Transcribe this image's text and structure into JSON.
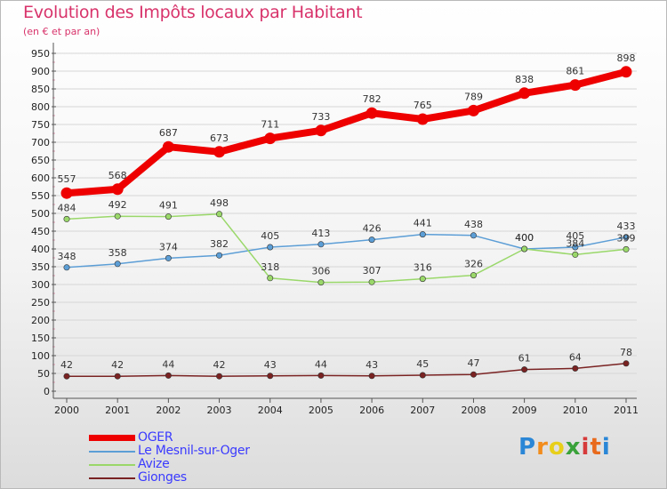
{
  "header": {
    "title": "Evolution des Impôts locaux par Habitant",
    "subtitle": "(en € et par an)"
  },
  "chart_data": {
    "type": "line",
    "title": "Evolution des Impôts locaux par Habitant",
    "subtitle": "(en € et par an)",
    "xlabel": "",
    "ylabel": "",
    "categories": [
      "2000",
      "2001",
      "2002",
      "2003",
      "2004",
      "2005",
      "2006",
      "2007",
      "2008",
      "2009",
      "2010",
      "2011"
    ],
    "ylim": [
      0,
      950
    ],
    "yticks": [
      0,
      50,
      100,
      150,
      200,
      250,
      300,
      350,
      400,
      450,
      500,
      550,
      600,
      650,
      700,
      750,
      800,
      850,
      900,
      950
    ],
    "grid": true,
    "legend_position": "bottom-left",
    "series": [
      {
        "name": "OGER",
        "color": "#ee0000",
        "values": [
          557,
          568,
          687,
          673,
          711,
          733,
          782,
          765,
          789,
          838,
          861,
          898
        ]
      },
      {
        "name": "Le Mesnil-sur-Oger",
        "color": "#5c9ed6",
        "values": [
          348,
          358,
          374,
          382,
          405,
          413,
          426,
          441,
          438,
          400,
          405,
          433
        ]
      },
      {
        "name": "Avize",
        "color": "#9ad86a",
        "values": [
          484,
          492,
          491,
          498,
          318,
          306,
          307,
          316,
          326,
          400,
          384,
          399
        ]
      },
      {
        "name": "Gionges",
        "color": "#7a2222",
        "values": [
          42,
          42,
          44,
          42,
          43,
          44,
          43,
          45,
          47,
          61,
          64,
          78
        ]
      }
    ]
  },
  "logo": {
    "letters": [
      "P",
      "r",
      "o",
      "x",
      "i",
      "t",
      "i"
    ],
    "colors": [
      "#2a86d6",
      "#f28c1c",
      "#e8cf1a",
      "#3aa23a",
      "#d63a3a",
      "#e86a1c",
      "#2a86d6"
    ]
  }
}
